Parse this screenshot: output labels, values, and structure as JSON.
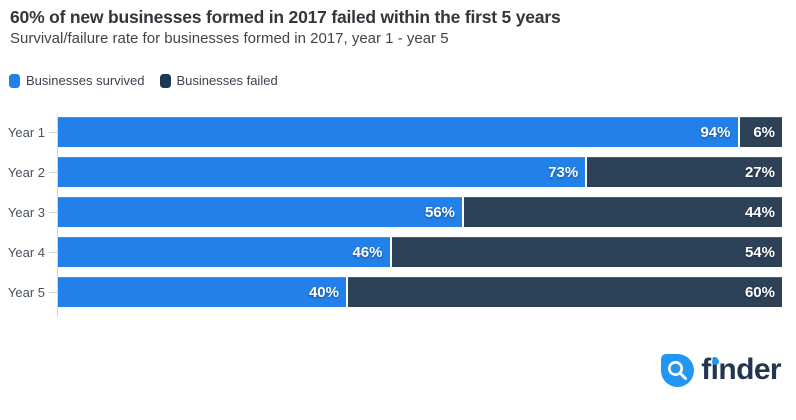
{
  "header": {
    "title": "60% of new businesses formed in 2017 failed within the first 5 years",
    "subtitle": "Survival/failure rate for businesses formed in 2017, year 1 - year 5"
  },
  "legend": {
    "items": [
      {
        "label": "Businesses survived",
        "color": "#2181e8"
      },
      {
        "label": "Businesses failed",
        "color": "#1d3755"
      }
    ]
  },
  "chart_data": {
    "type": "bar",
    "orientation": "horizontal-stacked",
    "title": "60% of new businesses formed in 2017 failed within the first 5 years",
    "subtitle": "Survival/failure rate for businesses formed in 2017, year 1 - year 5",
    "categories": [
      "Year 1",
      "Year 2",
      "Year 3",
      "Year 4",
      "Year 5"
    ],
    "series": [
      {
        "name": "Businesses survived",
        "values": [
          94,
          73,
          56,
          46,
          40
        ],
        "color": "#2181e8"
      },
      {
        "name": "Businesses failed",
        "values": [
          6,
          27,
          44,
          54,
          60
        ],
        "color": "#2e4257"
      }
    ],
    "value_suffix": "%",
    "xlim": [
      0,
      100
    ],
    "legend_position": "top",
    "grid": false
  },
  "footer": {
    "logo_text": "finder",
    "logo_mark_color": "#2196f3",
    "logo_text_color": "#243550"
  }
}
